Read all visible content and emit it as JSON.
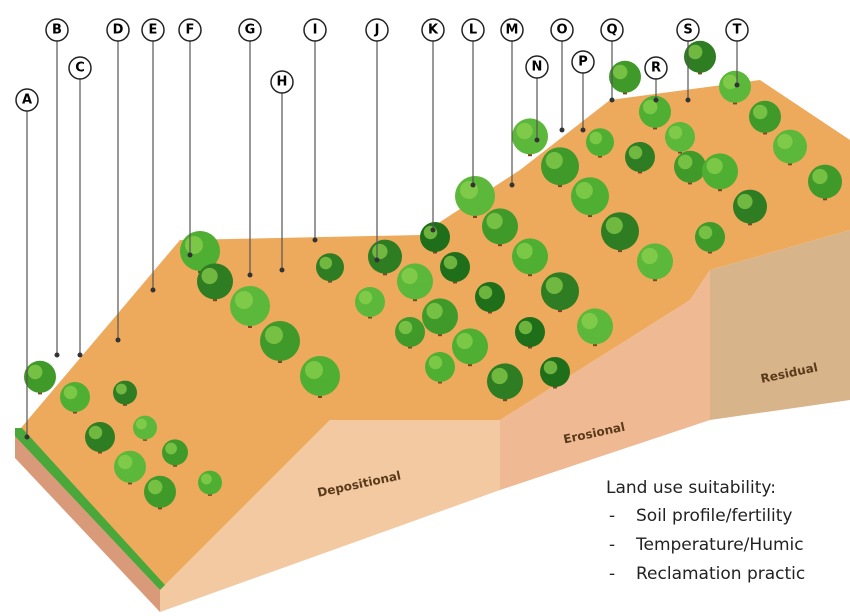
{
  "labels": [
    "A",
    "B",
    "C",
    "D",
    "E",
    "F",
    "G",
    "H",
    "I",
    "J",
    "K",
    "L",
    "M",
    "N",
    "O",
    "P",
    "Q",
    "R",
    "S",
    "T"
  ],
  "zones": [
    "Depositional",
    "Erosional",
    "Residual"
  ],
  "legend": {
    "title": "Land use suitability:",
    "items": [
      "Soil profile/fertility",
      "Temperature/Humic",
      "Reclamation practic"
    ]
  }
}
